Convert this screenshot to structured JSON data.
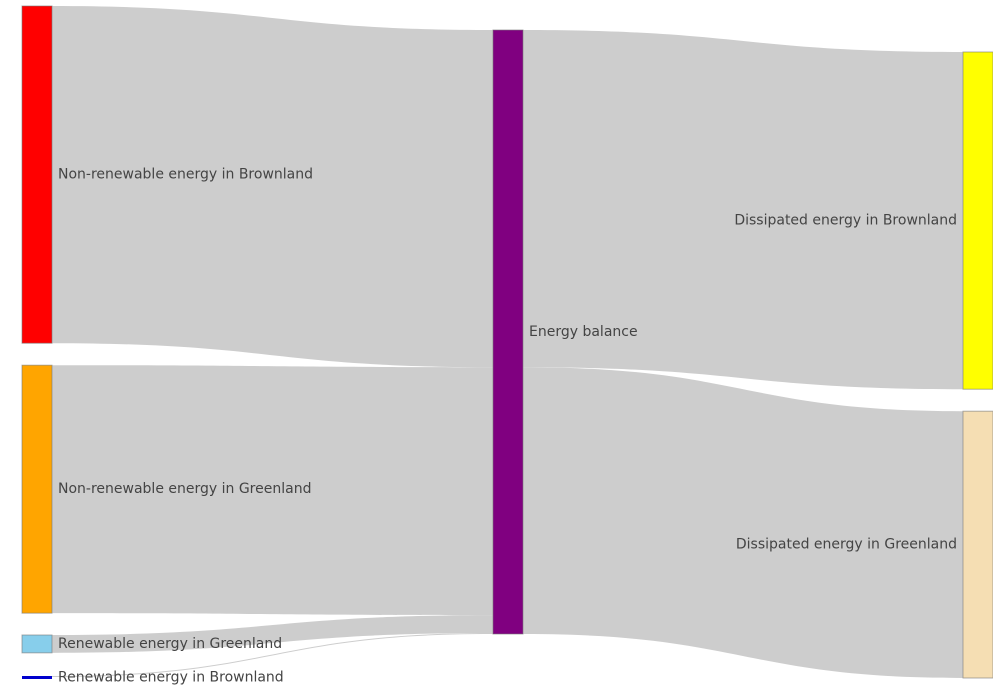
{
  "chart_data": {
    "type": "sankey",
    "nodes": [
      {
        "id": "nonrenew_brown",
        "label": "Non-renewable energy in Brownland",
        "color": "#ff0000"
      },
      {
        "id": "nonrenew_green",
        "label": "Non-renewable energy in Greenland",
        "color": "#ffa500"
      },
      {
        "id": "renew_green",
        "label": "Renewable energy in Greenland",
        "color": "#87ceeb"
      },
      {
        "id": "renew_brown",
        "label": "Renewable energy in Brownland",
        "color": "#0000cd"
      },
      {
        "id": "balance",
        "label": "Energy balance",
        "color": "#800080"
      },
      {
        "id": "diss_brown",
        "label": "Dissipated energy in Brownland",
        "color": "#ffff00"
      },
      {
        "id": "diss_green",
        "label": "Dissipated energy in Greenland",
        "color": "#f5deb3"
      }
    ],
    "links": [
      {
        "source": "nonrenew_brown",
        "target": "balance",
        "value": 340
      },
      {
        "source": "nonrenew_green",
        "target": "balance",
        "value": 250
      },
      {
        "source": "renew_green",
        "target": "balance",
        "value": 18
      },
      {
        "source": "renew_brown",
        "target": "balance",
        "value": 1
      },
      {
        "source": "balance",
        "target": "diss_brown",
        "value": 340
      },
      {
        "source": "balance",
        "target": "diss_green",
        "value": 269
      }
    ],
    "link_color": "#c8c8c8"
  }
}
